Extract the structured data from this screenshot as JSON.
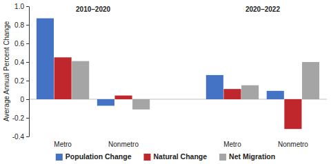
{
  "chart_data": {
    "type": "bar",
    "y_label": "Average Annual Percent Change",
    "groups": [
      "2010–2020",
      "2020–2022"
    ],
    "categories": [
      "Metro",
      "Nonmetro",
      "Metro",
      "Nonmetro"
    ],
    "series": [
      {
        "name": "Population Change",
        "color": "#4472c4",
        "values": [
          0.87,
          -0.07,
          0.26,
          0.09
        ]
      },
      {
        "name": "Natural Change",
        "color": "#c0272d",
        "values": [
          0.45,
          0.04,
          0.11,
          -0.32
        ]
      },
      {
        "name": "Net Migration",
        "color": "#a5a5a5",
        "values": [
          0.41,
          -0.11,
          0.15,
          0.4
        ]
      }
    ],
    "ylim": [
      -0.4,
      1.0
    ],
    "yticks": [
      -0.4,
      -0.2,
      0,
      0.2,
      0.4,
      0.6,
      0.8,
      {
        "value": 1.0,
        "label": "1.0"
      }
    ],
    "grid": false,
    "legend": "bottom"
  }
}
